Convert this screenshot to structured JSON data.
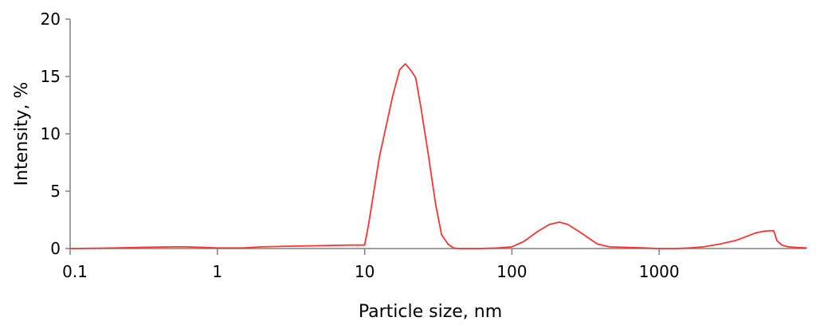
{
  "chart_data": {
    "type": "line",
    "title": "",
    "xlabel": "Particle size, nm",
    "ylabel": "Intensity, %",
    "x_scale": "log",
    "xlim": [
      0.1,
      10000
    ],
    "ylim": [
      0,
      20
    ],
    "x_ticks": [
      0.1,
      1,
      10,
      100,
      1000
    ],
    "x_tick_labels": [
      "0.1",
      "1",
      "10",
      "100",
      "1000"
    ],
    "y_ticks": [
      0,
      5,
      10,
      15,
      20
    ],
    "y_tick_labels": [
      "0",
      "5",
      "10",
      "15",
      "20"
    ],
    "grid": false,
    "legend": "none",
    "series": [
      {
        "color": "#ff3333",
        "x": [
          0.1,
          0.2,
          0.3,
          0.5,
          0.6,
          0.8,
          1,
          1.5,
          2,
          3,
          5,
          8,
          10,
          10.6,
          12.6,
          15.5,
          17.3,
          18.9,
          20.7,
          22.2,
          24.1,
          27.2,
          30.3,
          33.3,
          36.8,
          40,
          44,
          60,
          80,
          100,
          120,
          150,
          180,
          210,
          240,
          300,
          380,
          460,
          600,
          800,
          1000,
          1300,
          1600,
          2000,
          2600,
          3300,
          4000,
          4500,
          5100,
          5600,
          6000,
          6300,
          6800,
          7500,
          8500,
          10000
        ],
        "y": [
          0.0,
          0.05,
          0.1,
          0.15,
          0.15,
          0.1,
          0.05,
          0.05,
          0.15,
          0.2,
          0.25,
          0.3,
          0.3,
          2.0,
          8.0,
          13.3,
          15.6,
          16.1,
          15.5,
          14.9,
          12.3,
          8.0,
          3.9,
          1.2,
          0.4,
          0.05,
          0.0,
          0.0,
          0.05,
          0.15,
          0.6,
          1.5,
          2.1,
          2.3,
          2.1,
          1.3,
          0.4,
          0.15,
          0.1,
          0.05,
          0.0,
          0.0,
          0.05,
          0.15,
          0.4,
          0.7,
          1.1,
          1.35,
          1.5,
          1.55,
          1.55,
          0.7,
          0.3,
          0.15,
          0.1,
          0.05
        ]
      }
    ]
  }
}
